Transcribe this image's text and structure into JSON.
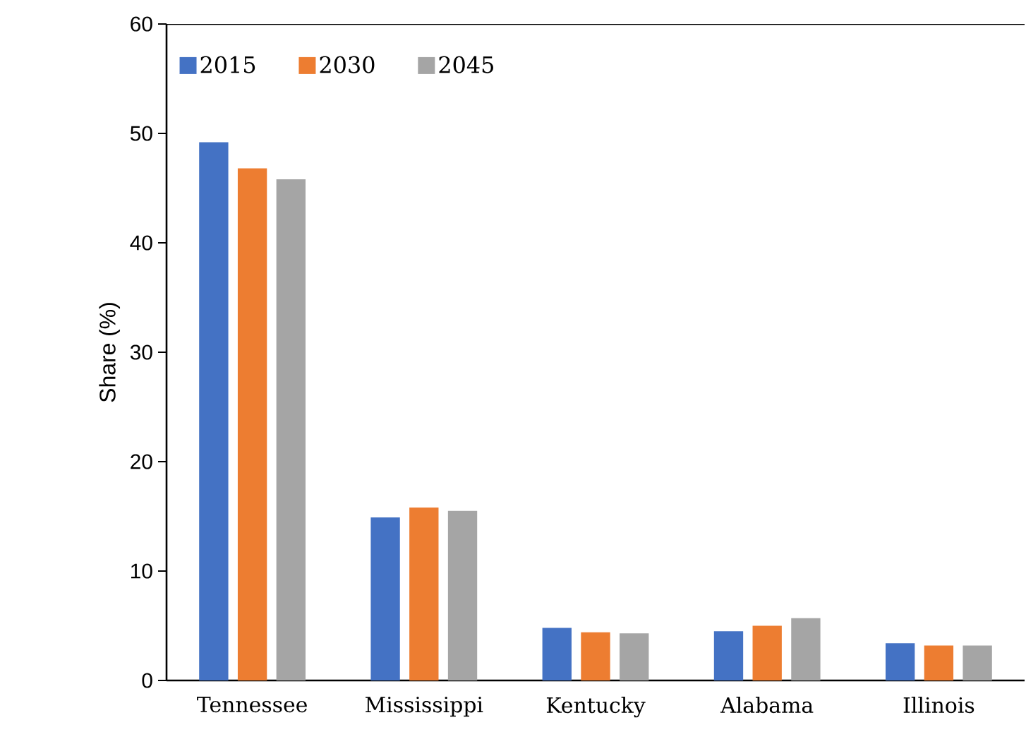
{
  "chart_data": {
    "type": "bar",
    "ylabel": "Share (%)",
    "categories": [
      "Tennessee",
      "Mississippi",
      "Kentucky",
      "Alabama",
      "Illinois"
    ],
    "series": [
      {
        "name": "2015",
        "color": "#4472c4",
        "values": [
          49.2,
          14.9,
          4.8,
          4.5,
          3.4
        ]
      },
      {
        "name": "2030",
        "color": "#ed7d31",
        "values": [
          46.8,
          15.8,
          4.4,
          5.0,
          3.2
        ]
      },
      {
        "name": "2045",
        "color": "#a5a5a5",
        "values": [
          45.8,
          15.5,
          4.3,
          5.7,
          3.2
        ]
      }
    ],
    "ylim": [
      0,
      60
    ],
    "yticks": [
      0,
      10,
      20,
      30,
      40,
      50,
      60
    ],
    "grid": false,
    "legend": "top left"
  }
}
